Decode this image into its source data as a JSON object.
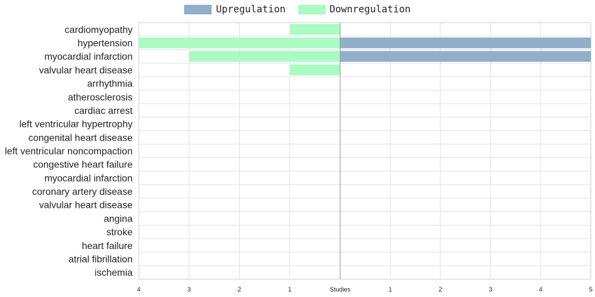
{
  "chart_data": {
    "type": "bar",
    "orientation": "horizontal-diverging",
    "categories": [
      "cardiomyopathy",
      "hypertension",
      "myocardial infarction",
      "valvular heart disease",
      "arrhythmia",
      "atherosclerosis",
      "cardiac arrest",
      "left ventricular hypertrophy",
      "congenital heart disease",
      "left ventricular noncompaction",
      "congestive heart failure",
      "myocardial infarction",
      "coronary artery disease",
      "valvular heart disease",
      "angina",
      "stroke",
      "heart failure",
      "atrial fibrillation",
      "ischemia"
    ],
    "series": [
      {
        "name": "Upregulation",
        "color": "#93aecb",
        "values": [
          0,
          5,
          5,
          0,
          0,
          0,
          0,
          0,
          0,
          0,
          0,
          0,
          0,
          0,
          0,
          0,
          0,
          0,
          0
        ]
      },
      {
        "name": "Downregulation",
        "color": "#a9fbc2",
        "values": [
          1,
          4,
          3,
          1,
          0,
          0,
          0,
          0,
          0,
          0,
          0,
          0,
          0,
          0,
          0,
          0,
          0,
          0,
          0
        ]
      }
    ],
    "xlabel": "Studies",
    "left_ticks": [
      "4",
      "3",
      "2",
      "1"
    ],
    "right_ticks": [
      "1",
      "2",
      "3",
      "4",
      "5"
    ],
    "xlim_left": 4,
    "xlim_right": 5,
    "grid": true,
    "legend_position": "top-center"
  }
}
